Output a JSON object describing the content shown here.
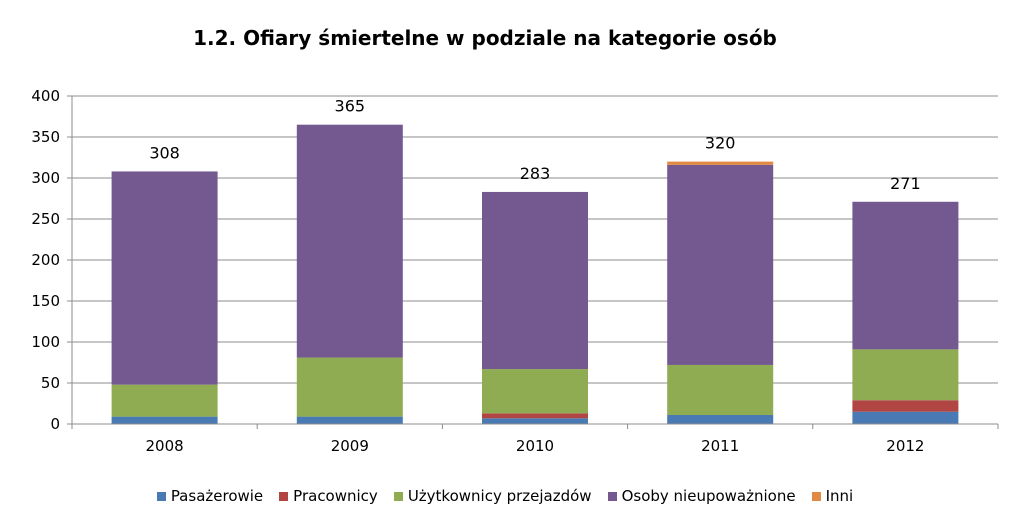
{
  "chart_data": {
    "type": "bar",
    "stacked": true,
    "title": "1.2. Ofiary śmiertelne w podziale na kategorie osób",
    "categories": [
      "2008",
      "2009",
      "2010",
      "2011",
      "2012"
    ],
    "series": [
      {
        "name": "Pasażerowie",
        "color": "#4a7ab3",
        "values": [
          9,
          9,
          7,
          11,
          15
        ]
      },
      {
        "name": "Pracownicy",
        "color": "#b04543",
        "values": [
          0,
          0,
          6,
          0,
          14
        ]
      },
      {
        "name": "Użytkownicy przejazdów",
        "color": "#8fac52",
        "values": [
          39,
          72,
          54,
          61,
          62
        ]
      },
      {
        "name": "Osoby nieupoważnione",
        "color": "#735990",
        "values": [
          260,
          284,
          216,
          244,
          180
        ]
      },
      {
        "name": "Inni",
        "color": "#e08a44",
        "values": [
          0,
          0,
          0,
          4,
          0
        ]
      }
    ],
    "totals": [
      "308",
      "365",
      "283",
      "320",
      "271"
    ],
    "ylim": [
      0,
      400
    ],
    "yticks": [
      "0",
      "50",
      "100",
      "150",
      "200",
      "250",
      "300",
      "350",
      "400"
    ],
    "grid": true,
    "legend_position": "bottom"
  }
}
